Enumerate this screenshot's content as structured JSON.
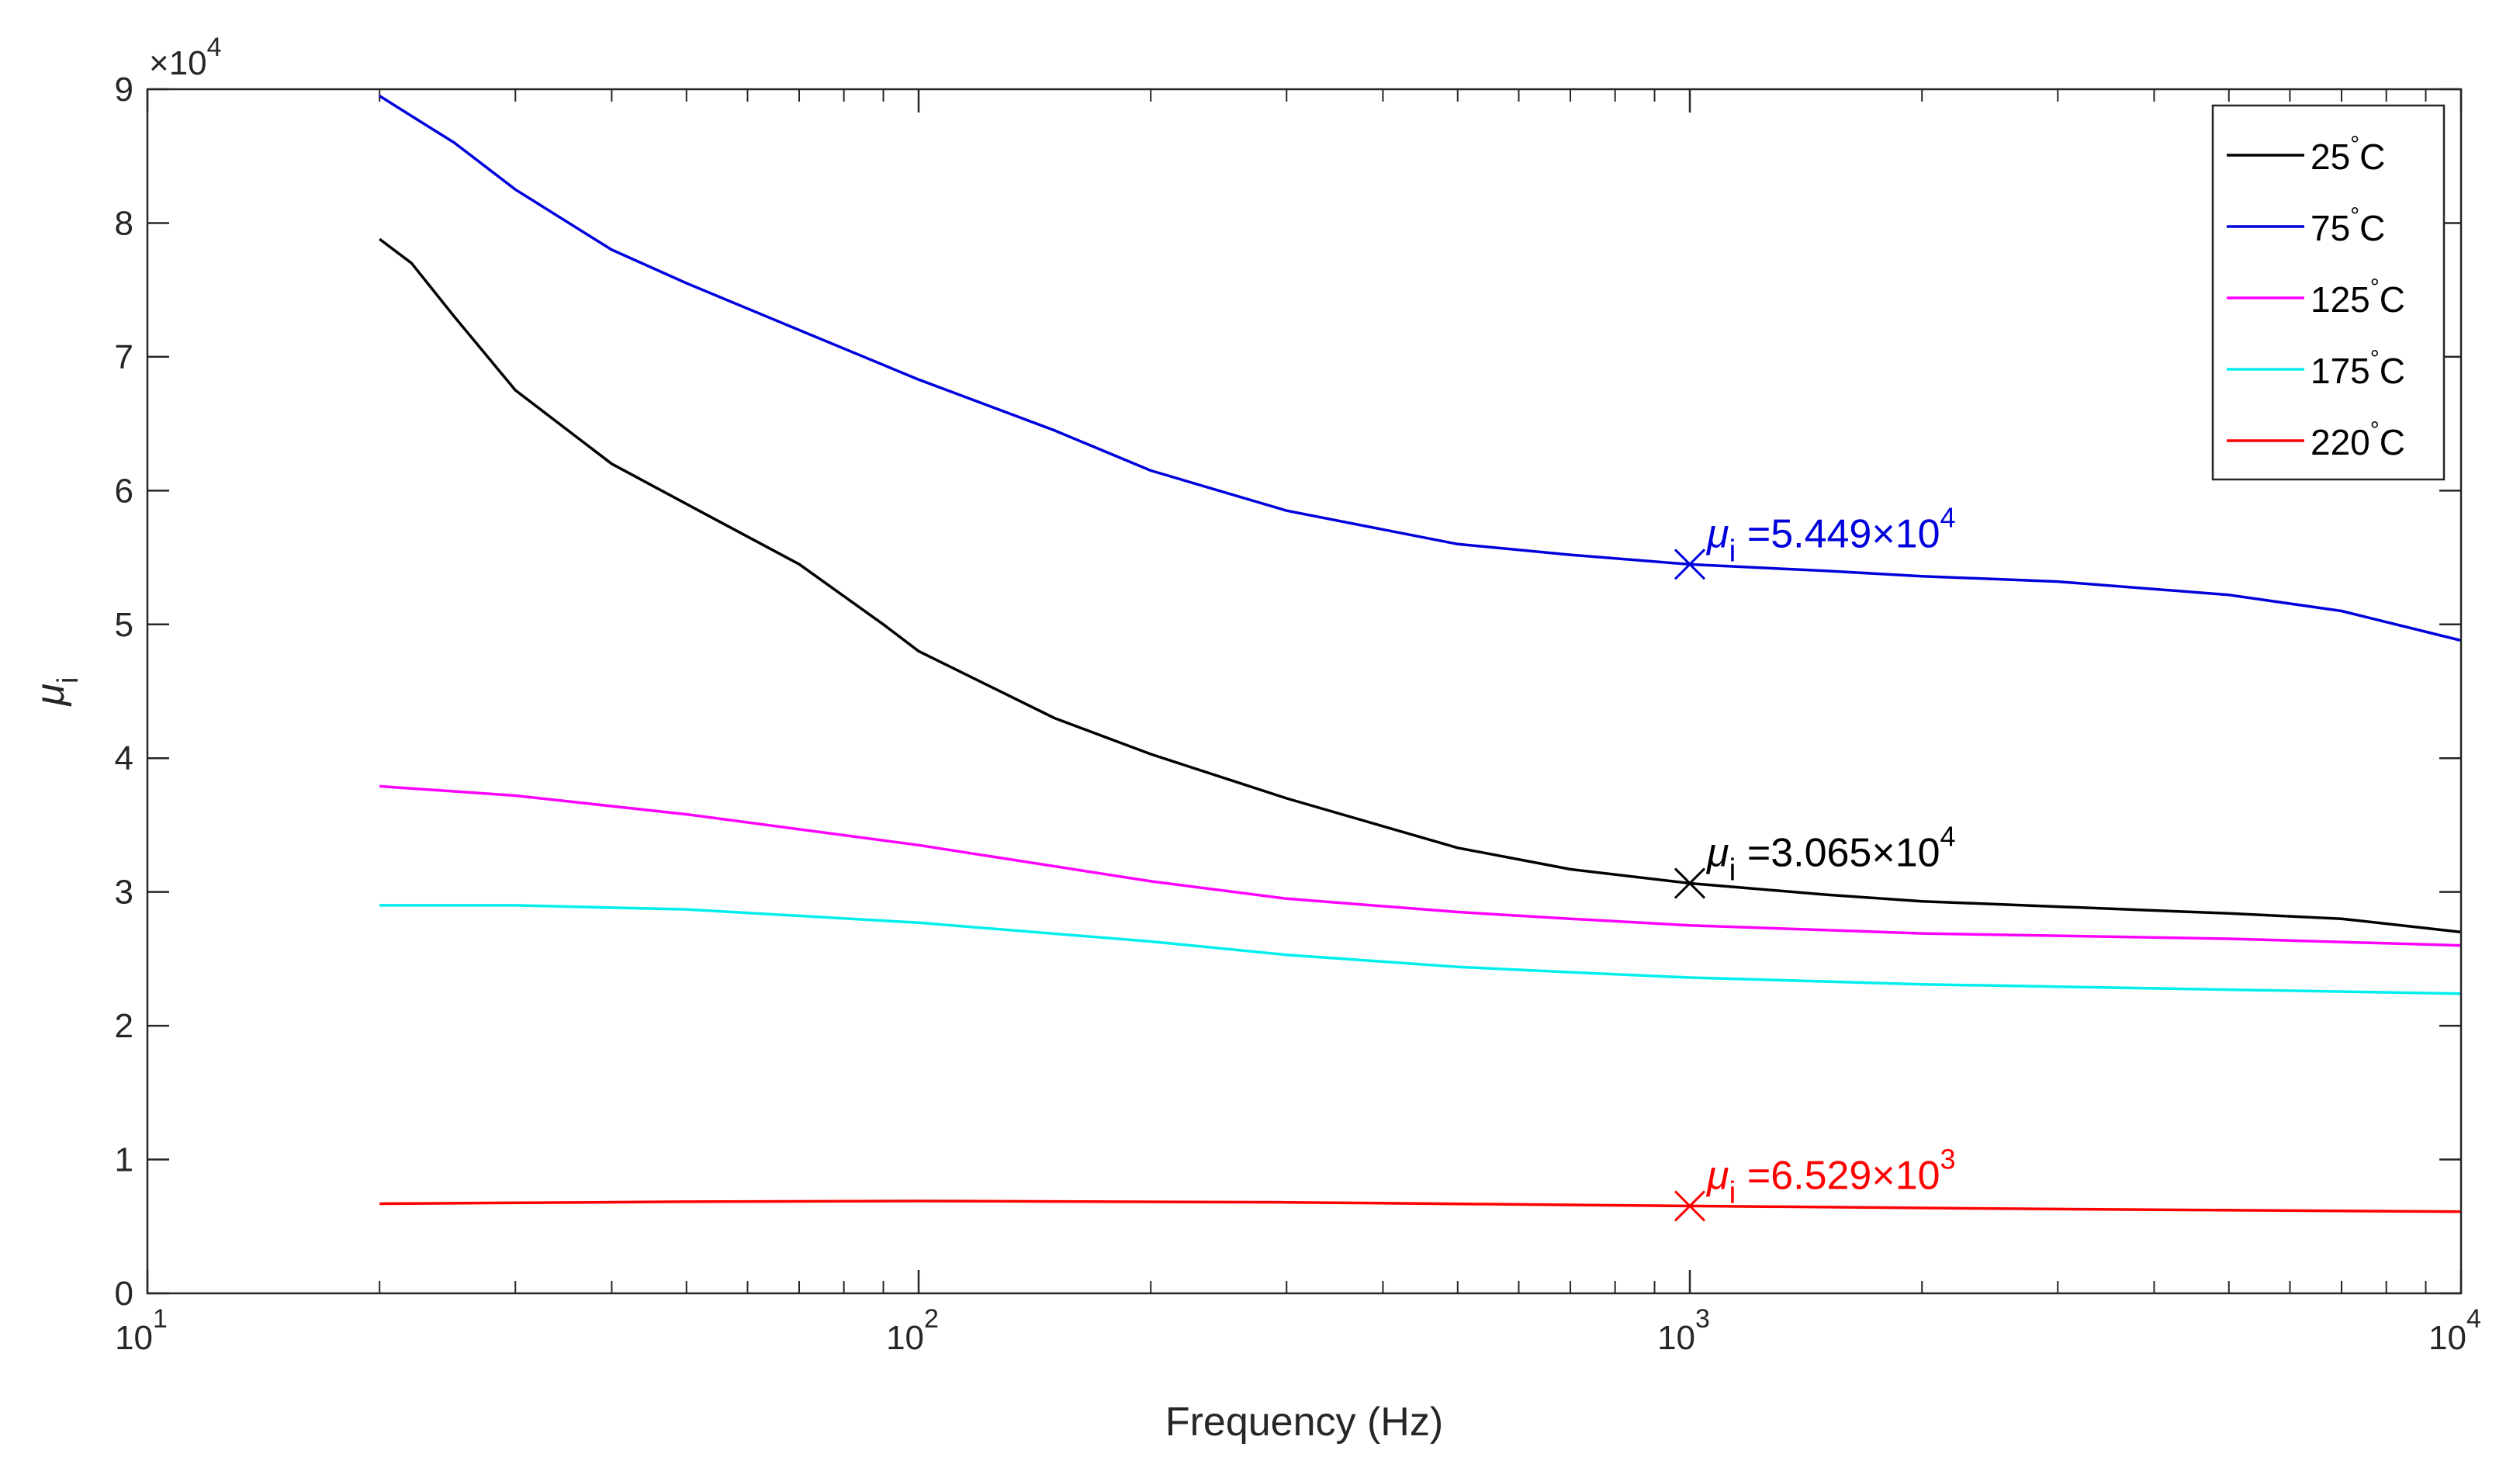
{
  "chart_data": {
    "type": "line",
    "title": "",
    "xlabel": "Frequency (Hz)",
    "ylabel": "μi",
    "xscale": "log",
    "xlim": [
      10,
      10000
    ],
    "ylim": [
      0,
      90000
    ],
    "y_multiplier_label": "×10",
    "y_multiplier_exp": "4",
    "x_ticks": [
      {
        "value": 10,
        "base": "10",
        "exp": "1"
      },
      {
        "value": 100,
        "base": "10",
        "exp": "2"
      },
      {
        "value": 1000,
        "base": "10",
        "exp": "3"
      },
      {
        "value": 10000,
        "base": "10",
        "exp": "4"
      }
    ],
    "y_ticks": [
      {
        "value": 0,
        "label": "0"
      },
      {
        "value": 10000,
        "label": "1"
      },
      {
        "value": 20000,
        "label": "2"
      },
      {
        "value": 30000,
        "label": "3"
      },
      {
        "value": 40000,
        "label": "4"
      },
      {
        "value": 50000,
        "label": "5"
      },
      {
        "value": 60000,
        "label": "6"
      },
      {
        "value": 70000,
        "label": "7"
      },
      {
        "value": 80000,
        "label": "8"
      },
      {
        "value": 90000,
        "label": "9"
      }
    ],
    "legend_position": "top-right",
    "series": [
      {
        "name": "25°C",
        "legend_num": "25",
        "color": "#000000",
        "x": [
          20,
          22,
          25,
          30,
          40,
          50,
          70,
          90,
          100,
          150,
          200,
          300,
          500,
          700,
          1000,
          1500,
          2000,
          3000,
          5000,
          7000,
          10000
        ],
        "y": [
          78800,
          77000,
          73000,
          67500,
          62000,
          59000,
          54500,
          50000,
          48000,
          43000,
          40300,
          37000,
          33300,
          31700,
          30650,
          29800,
          29300,
          28900,
          28400,
          28000,
          27000
        ]
      },
      {
        "name": "75°C",
        "legend_num": "75",
        "color": "#0000dd",
        "x": [
          20,
          22,
          25,
          30,
          40,
          50,
          70,
          100,
          150,
          200,
          300,
          500,
          700,
          1000,
          1500,
          2000,
          3000,
          5000,
          7000,
          10000
        ],
        "y": [
          89500,
          88000,
          86000,
          82500,
          78000,
          75500,
          72000,
          68300,
          64500,
          61500,
          58500,
          56000,
          55200,
          54490,
          54000,
          53600,
          53200,
          52200,
          51000,
          48800
        ]
      },
      {
        "name": "125°C",
        "legend_num": "125",
        "color": "#ff00ff",
        "x": [
          20,
          30,
          50,
          100,
          200,
          300,
          500,
          700,
          1000,
          2000,
          5000,
          10000
        ],
        "y": [
          37900,
          37200,
          35800,
          33500,
          30800,
          29500,
          28500,
          28000,
          27500,
          26900,
          26500,
          26000
        ]
      },
      {
        "name": "175°C",
        "legend_num": "175",
        "color": "#00eeee",
        "x": [
          20,
          30,
          50,
          100,
          200,
          300,
          500,
          700,
          1000,
          2000,
          5000,
          10000
        ],
        "y": [
          29000,
          29000,
          28700,
          27700,
          26300,
          25300,
          24400,
          24000,
          23600,
          23100,
          22700,
          22400
        ]
      },
      {
        "name": "220°C",
        "legend_num": "220",
        "color": "#ff0000",
        "x": [
          20,
          50,
          100,
          300,
          1000,
          3000,
          10000
        ],
        "y": [
          6700,
          6850,
          6900,
          6800,
          6529,
          6300,
          6100
        ]
      }
    ],
    "annotations": [
      {
        "x": 1000,
        "y": 54490,
        "symbol": "μ",
        "sub": "i",
        "value": " =5.449×10",
        "exp": "4",
        "color": "#0000dd"
      },
      {
        "x": 1000,
        "y": 30650,
        "symbol": "μ",
        "sub": "i",
        "value": " =3.065×10",
        "exp": "4",
        "color": "#000000"
      },
      {
        "x": 1000,
        "y": 6529,
        "symbol": "μ",
        "sub": "i",
        "value": " =6.529×10",
        "exp": "3",
        "color": "#ff0000"
      }
    ],
    "legend_degree": "°",
    "legend_unit": "C"
  }
}
